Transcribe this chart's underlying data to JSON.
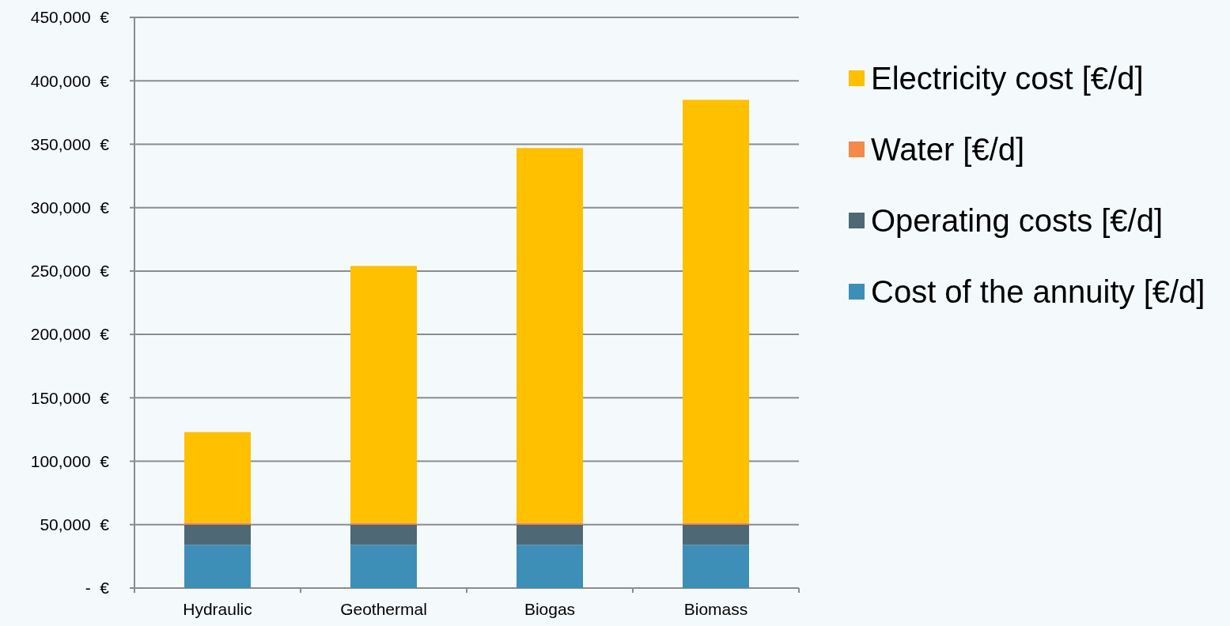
{
  "chart_data": {
    "type": "bar",
    "stacked": true,
    "categories": [
      "Hydraulic",
      "Geothermal",
      "Biogas",
      "Biomass"
    ],
    "series": [
      {
        "name": "Cost of the annuity [€/d]",
        "color": "#3d8fb8",
        "values": [
          34000,
          34000,
          34000,
          34000
        ]
      },
      {
        "name": "Operating costs [€/d]",
        "color": "#4e6875",
        "values": [
          16000,
          16000,
          16000,
          16000
        ]
      },
      {
        "name": "Water [€/d]",
        "color": "#f5894a",
        "values": [
          1500,
          1500,
          1500,
          1500
        ]
      },
      {
        "name": "Electricity cost [€/d]",
        "color": "#ffc000",
        "values": [
          71500,
          202500,
          295500,
          333500
        ]
      }
    ],
    "ylim": [
      0,
      450000
    ],
    "yticks": [
      {
        "value": 0,
        "label": "-  €"
      },
      {
        "value": 50000,
        "label": "50,000  €"
      },
      {
        "value": 100000,
        "label": "100,000  €"
      },
      {
        "value": 150000,
        "label": "150,000  €"
      },
      {
        "value": 200000,
        "label": "200,000  €"
      },
      {
        "value": 250000,
        "label": "250,000  €"
      },
      {
        "value": 300000,
        "label": "300,000  €"
      },
      {
        "value": 350000,
        "label": "350,000  €"
      },
      {
        "value": 400000,
        "label": "400,000  €"
      },
      {
        "value": 450000,
        "label": "450,000  €"
      }
    ],
    "grid": "y",
    "legend": "right"
  }
}
